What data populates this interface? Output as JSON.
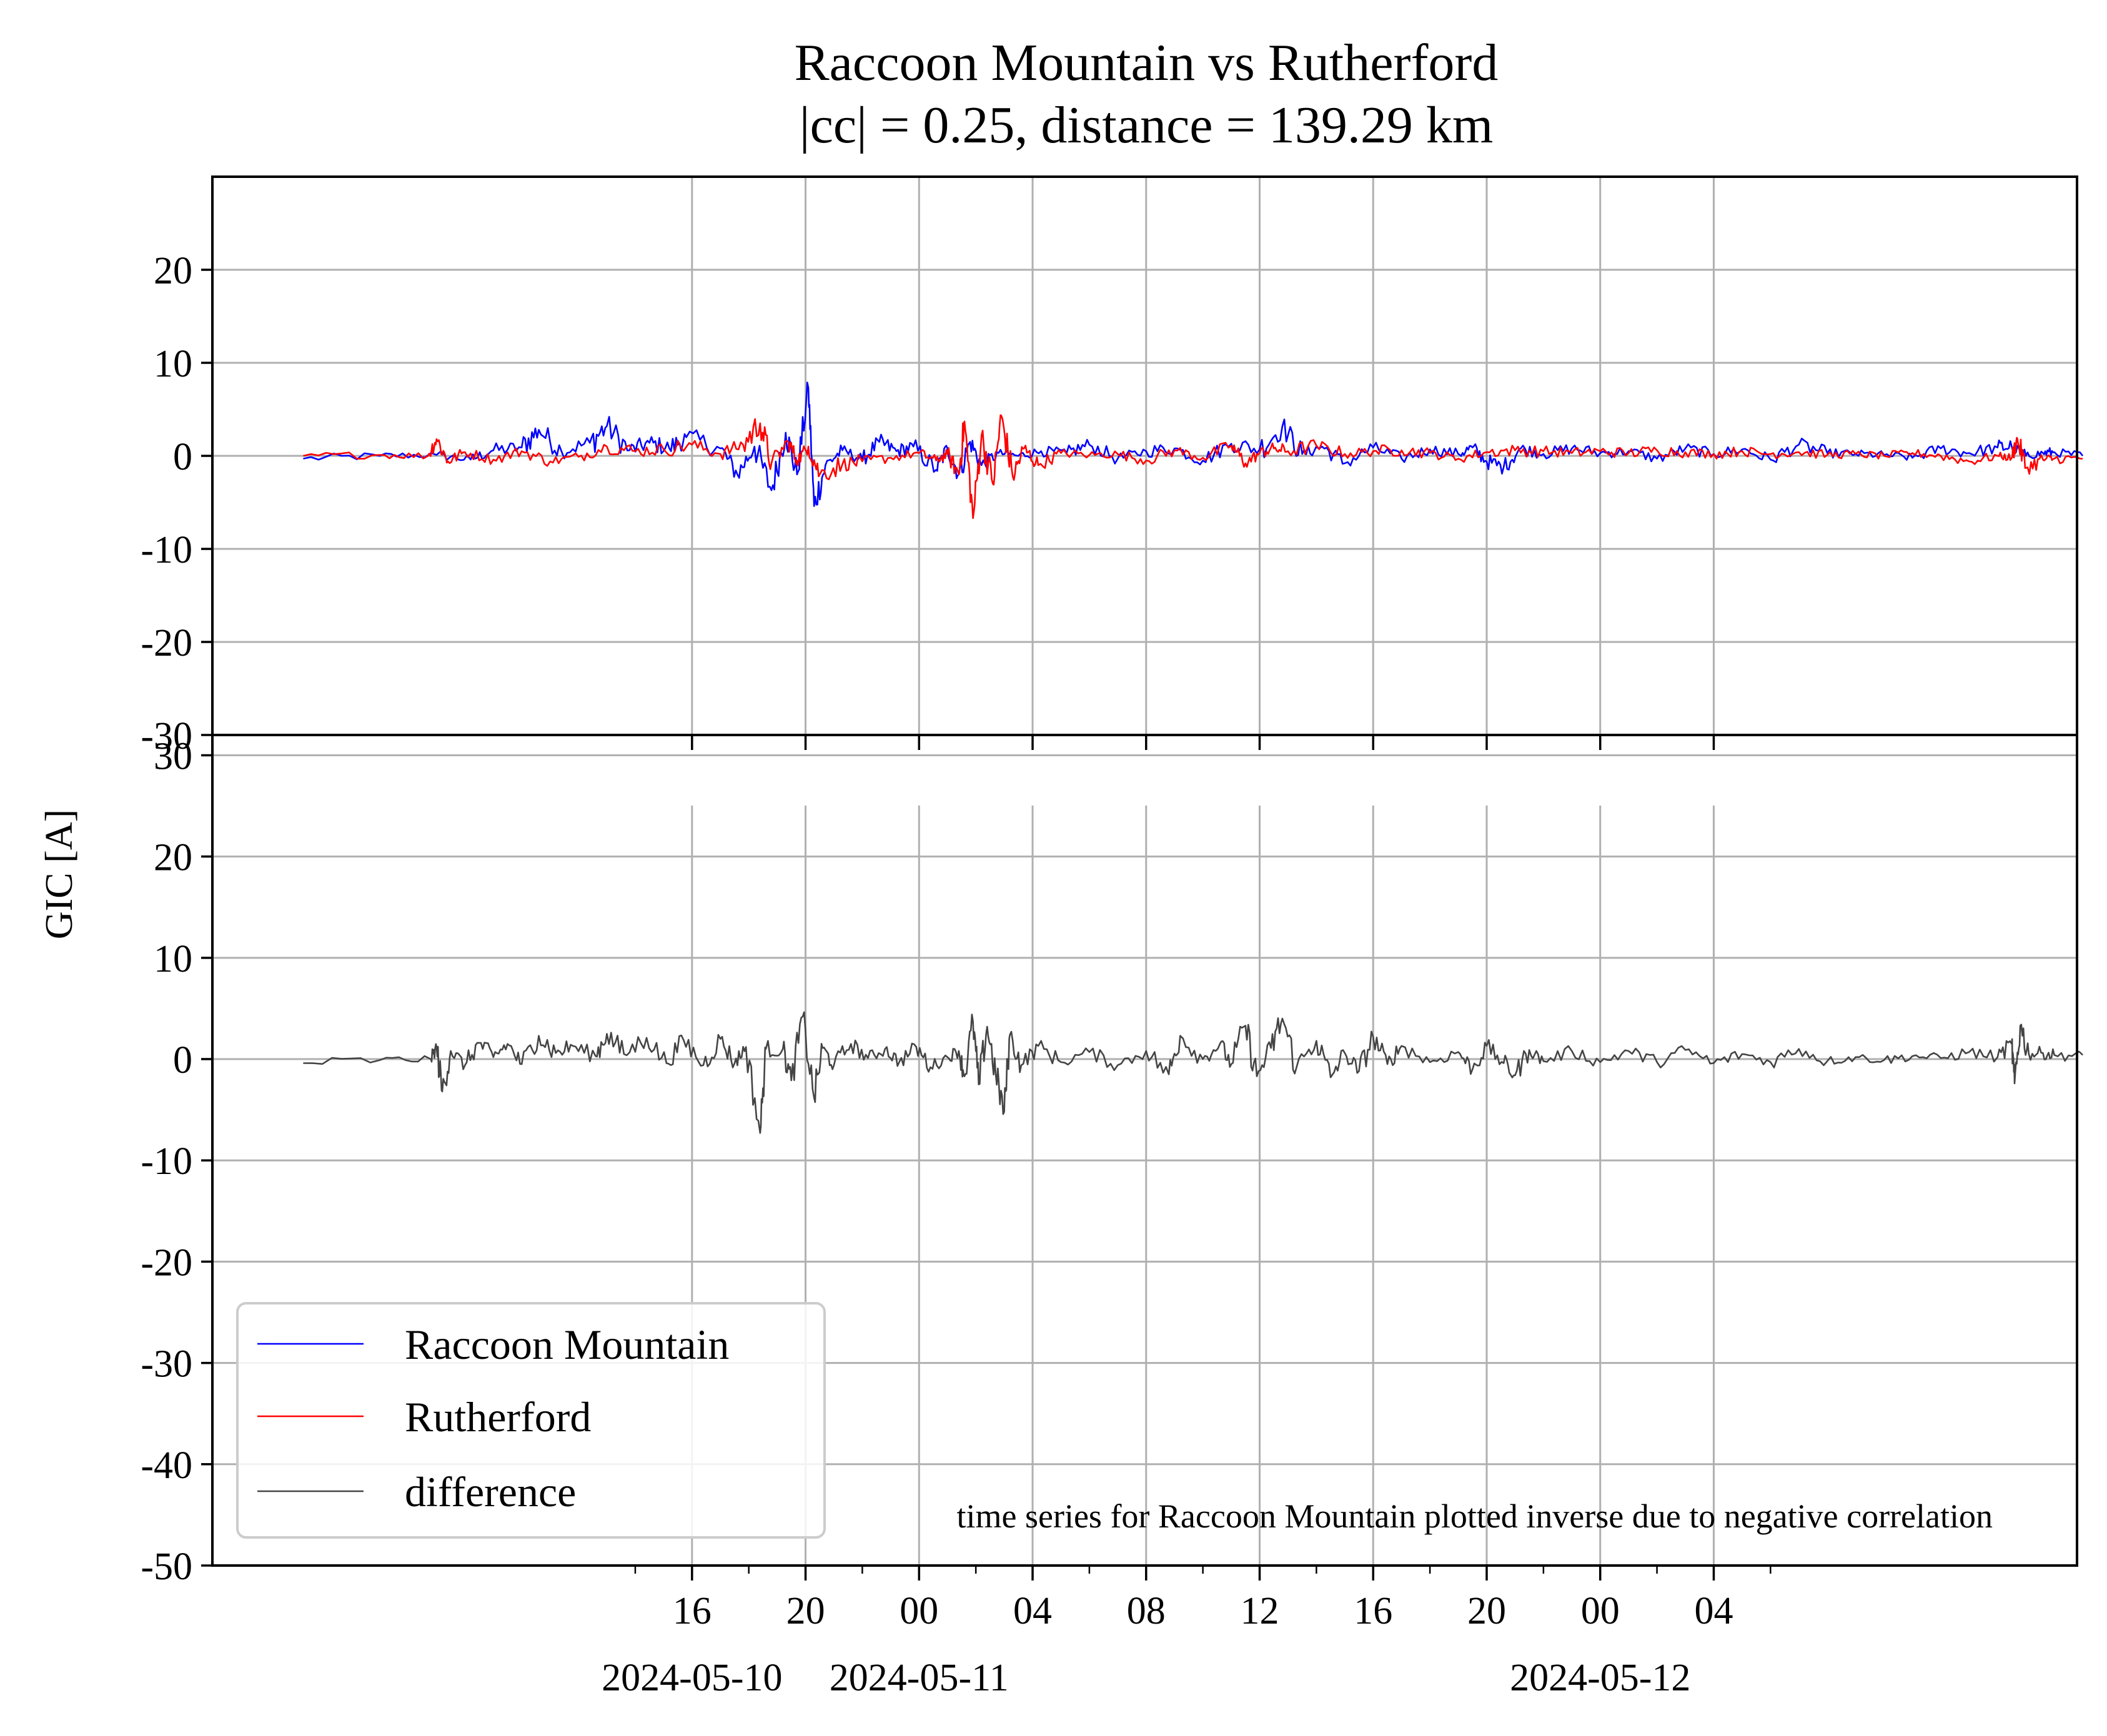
{
  "chart_data": [
    {
      "type": "line",
      "title": "Raccoon Mountain vs Rutherford",
      "subtitle": "|cc| = 0.25, distance = 139.29 km",
      "ylabel": "GIC [A]",
      "ylim": [
        -30,
        30
      ],
      "yticks": [
        -30,
        -20,
        -10,
        0,
        10,
        20
      ],
      "xlim": [
        -16.9,
        48.8
      ],
      "grid": true,
      "series": [
        {
          "name": "Raccoon Mountain",
          "color": "#0000ff",
          "keypoints": [
            [
              -13.7,
              -0.3
            ],
            [
              -11.0,
              0.0
            ],
            [
              -9.0,
              0.1
            ],
            [
              -7.8,
              -0.4
            ],
            [
              -7.0,
              0.6
            ],
            [
              -6.0,
              0.9
            ],
            [
              -5.4,
              2.8
            ],
            [
              -4.6,
              0.5
            ],
            [
              -3.6,
              1.4
            ],
            [
              -3.0,
              3.2
            ],
            [
              -2.2,
              0.6
            ],
            [
              -1.5,
              1.4
            ],
            [
              -0.8,
              0.8
            ],
            [
              -0.2,
              2.0
            ],
            [
              1.0,
              0.8
            ],
            [
              1.6,
              -2.0
            ],
            [
              2.2,
              1.0
            ],
            [
              2.8,
              -3.7
            ],
            [
              3.3,
              2.5
            ],
            [
              3.7,
              -2.0
            ],
            [
              4.1,
              7.3
            ],
            [
              4.3,
              -5.4
            ],
            [
              4.7,
              -1.0
            ],
            [
              5.3,
              0.6
            ],
            [
              6.0,
              -0.4
            ],
            [
              6.6,
              1.5
            ],
            [
              7.2,
              0.5
            ],
            [
              7.8,
              1.0
            ],
            [
              8.6,
              -1.5
            ],
            [
              9.0,
              0.8
            ],
            [
              9.4,
              -2.0
            ],
            [
              9.8,
              1.5
            ],
            [
              10.2,
              -1.0
            ],
            [
              10.8,
              0.3
            ],
            [
              11.5,
              0.0
            ],
            [
              12.3,
              0.5
            ],
            [
              13.2,
              0.3
            ],
            [
              14.0,
              1.2
            ],
            [
              15.0,
              -0.3
            ],
            [
              16.0,
              0.5
            ],
            [
              17.0,
              0.8
            ],
            [
              18.0,
              -0.5
            ],
            [
              19.0,
              1.3
            ],
            [
              20.0,
              0.7
            ],
            [
              20.8,
              3.2
            ],
            [
              21.5,
              0.2
            ],
            [
              22.2,
              1.0
            ],
            [
              23.0,
              -0.8
            ],
            [
              24.0,
              0.9
            ],
            [
              25.0,
              -0.3
            ],
            [
              26.0,
              0.7
            ],
            [
              27.0,
              0.2
            ],
            [
              27.5,
              0.9
            ],
            [
              28.0,
              -0.6
            ],
            [
              28.6,
              -1.2
            ],
            [
              29.2,
              0.8
            ],
            [
              30.0,
              0.2
            ],
            [
              31.0,
              0.8
            ],
            [
              32.0,
              0.3
            ],
            [
              33.0,
              0.5
            ],
            [
              34.0,
              -0.3
            ],
            [
              35.0,
              0.8
            ],
            [
              36.0,
              0.2
            ],
            [
              37.0,
              0.7
            ],
            [
              38.0,
              -0.4
            ],
            [
              39.0,
              1.2
            ],
            [
              40.0,
              0.3
            ],
            [
              41.0,
              0.2
            ],
            [
              42.0,
              0.1
            ],
            [
              43.0,
              -0.2
            ],
            [
              44.0,
              0.8
            ],
            [
              45.0,
              0.3
            ],
            [
              46.0,
              0.9
            ],
            [
              46.5,
              1.0
            ],
            [
              47.0,
              0.0
            ],
            [
              47.6,
              0.3
            ],
            [
              48.0,
              0.4
            ],
            [
              49.0,
              0.0
            ]
          ]
        },
        {
          "name": "Rutherford",
          "color": "#ff0000",
          "keypoints": [
            [
              -13.7,
              0.0
            ],
            [
              -11.0,
              0.1
            ],
            [
              -9.3,
              0.0
            ],
            [
              -9.0,
              1.8
            ],
            [
              -8.6,
              -0.6
            ],
            [
              -8.0,
              0.4
            ],
            [
              -7.0,
              -0.4
            ],
            [
              -6.0,
              0.5
            ],
            [
              -5.0,
              -0.6
            ],
            [
              -4.0,
              -0.1
            ],
            [
              -3.0,
              1.0
            ],
            [
              -2.0,
              0.5
            ],
            [
              -1.0,
              0.7
            ],
            [
              0.0,
              1.2
            ],
            [
              1.0,
              0.2
            ],
            [
              1.8,
              1.2
            ],
            [
              2.4,
              3.5
            ],
            [
              2.8,
              -0.8
            ],
            [
              3.4,
              1.5
            ],
            [
              3.7,
              -0.5
            ],
            [
              4.1,
              1.0
            ],
            [
              4.5,
              -2.0
            ],
            [
              5.3,
              -0.9
            ],
            [
              6.0,
              -0.6
            ],
            [
              7.0,
              -0.2
            ],
            [
              8.0,
              0.3
            ],
            [
              8.6,
              -0.5
            ],
            [
              9.0,
              0.2
            ],
            [
              9.4,
              -2.0
            ],
            [
              9.6,
              3.7
            ],
            [
              9.9,
              -6.7
            ],
            [
              10.2,
              2.2
            ],
            [
              10.6,
              -3.0
            ],
            [
              10.9,
              4.3
            ],
            [
              11.3,
              -2.2
            ],
            [
              11.7,
              0.8
            ],
            [
              12.2,
              -1.0
            ],
            [
              13.0,
              0.3
            ],
            [
              14.0,
              0.1
            ],
            [
              15.0,
              0.2
            ],
            [
              16.0,
              -0.5
            ],
            [
              17.0,
              0.6
            ],
            [
              18.0,
              -0.2
            ],
            [
              19.0,
              1.1
            ],
            [
              19.5,
              -0.8
            ],
            [
              20.0,
              0.3
            ],
            [
              20.5,
              0.8
            ],
            [
              21.0,
              0.5
            ],
            [
              22.0,
              1.1
            ],
            [
              23.0,
              0.2
            ],
            [
              24.0,
              0.5
            ],
            [
              25.0,
              0.6
            ],
            [
              26.0,
              0.3
            ],
            [
              27.0,
              -0.3
            ],
            [
              28.0,
              0.4
            ],
            [
              29.0,
              0.6
            ],
            [
              30.0,
              0.5
            ],
            [
              31.0,
              0.3
            ],
            [
              32.0,
              0.5
            ],
            [
              33.0,
              0.3
            ],
            [
              34.0,
              0.6
            ],
            [
              35.0,
              0.4
            ],
            [
              36.0,
              0.2
            ],
            [
              37.0,
              0.5
            ],
            [
              38.0,
              0.2
            ],
            [
              39.0,
              0.4
            ],
            [
              40.0,
              0.1
            ],
            [
              41.0,
              0.2
            ],
            [
              42.0,
              0.0
            ],
            [
              43.0,
              0.3
            ],
            [
              44.0,
              0.0
            ],
            [
              45.0,
              -0.6
            ],
            [
              46.0,
              0.0
            ],
            [
              46.5,
              -0.2
            ],
            [
              46.7,
              1.8
            ],
            [
              47.0,
              -1.3
            ],
            [
              47.6,
              -0.4
            ],
            [
              48.0,
              -0.3
            ],
            [
              49.0,
              -0.3
            ]
          ]
        }
      ]
    },
    {
      "type": "line",
      "ylim": [
        -50,
        32
      ],
      "yticks": [
        -50,
        -40,
        -30,
        -20,
        -10,
        0,
        10,
        20,
        30
      ],
      "xlim": [
        -16.9,
        48.8
      ],
      "xticks": [
        {
          "value": 0,
          "label": "16"
        },
        {
          "value": 4,
          "label": "20"
        },
        {
          "value": 8,
          "label": "00"
        },
        {
          "value": 12,
          "label": "04"
        },
        {
          "value": 16,
          "label": "08"
        },
        {
          "value": 20,
          "label": "12"
        },
        {
          "value": 24,
          "label": "16"
        },
        {
          "value": 28,
          "label": "20"
        },
        {
          "value": 32,
          "label": "00"
        },
        {
          "value": 36,
          "label": "04"
        }
      ],
      "date_labels": [
        {
          "value": 0,
          "label": "2024-05-10"
        },
        {
          "value": 8,
          "label": "2024-05-11"
        },
        {
          "value": 32,
          "label": "2024-05-12"
        }
      ],
      "grid": true,
      "annotation": "time series for Raccoon Mountain plotted inverse due to negative correlation",
      "series": [
        {
          "name": "difference",
          "color": "#444444",
          "keypoints": [
            [
              -13.7,
              -0.4
            ],
            [
              -11.0,
              -0.1
            ],
            [
              -9.2,
              0.0
            ],
            [
              -9.0,
              1.2
            ],
            [
              -8.8,
              -3.2
            ],
            [
              -8.5,
              0.8
            ],
            [
              -8.0,
              -0.6
            ],
            [
              -7.5,
              1.6
            ],
            [
              -7.0,
              0.2
            ],
            [
              -6.5,
              1.5
            ],
            [
              -6.0,
              -0.5
            ],
            [
              -5.4,
              2.3
            ],
            [
              -4.8,
              0.6
            ],
            [
              -4.2,
              1.3
            ],
            [
              -3.4,
              0.3
            ],
            [
              -3.0,
              2.5
            ],
            [
              -2.4,
              0.5
            ],
            [
              -1.6,
              2.1
            ],
            [
              -0.9,
              -0.4
            ],
            [
              -0.3,
              1.9
            ],
            [
              0.4,
              -0.6
            ],
            [
              1.0,
              2.0
            ],
            [
              1.5,
              -0.4
            ],
            [
              1.9,
              1.2
            ],
            [
              2.4,
              -7.3
            ],
            [
              2.6,
              1.0
            ],
            [
              3.2,
              1.0
            ],
            [
              3.5,
              -2.1
            ],
            [
              3.9,
              4.2
            ],
            [
              4.3,
              -3.8
            ],
            [
              4.6,
              1.1
            ],
            [
              5.0,
              -0.6
            ],
            [
              5.6,
              1.5
            ],
            [
              6.2,
              0.1
            ],
            [
              6.8,
              1.0
            ],
            [
              7.3,
              -0.3
            ],
            [
              7.9,
              1.2
            ],
            [
              8.4,
              -0.8
            ],
            [
              9.0,
              0.2
            ],
            [
              9.4,
              0.8
            ],
            [
              9.6,
              -1.7
            ],
            [
              9.9,
              3.7
            ],
            [
              10.1,
              -2.5
            ],
            [
              10.4,
              3.2
            ],
            [
              10.7,
              -1.5
            ],
            [
              11.0,
              -5.2
            ],
            [
              11.2,
              2.4
            ],
            [
              11.6,
              -0.6
            ],
            [
              12.2,
              1.3
            ],
            [
              13.0,
              -0.3
            ],
            [
              14.0,
              0.7
            ],
            [
              15.0,
              -0.6
            ],
            [
              16.0,
              0.8
            ],
            [
              16.8,
              -1.5
            ],
            [
              17.2,
              2.3
            ],
            [
              18.0,
              0.0
            ],
            [
              18.6,
              1.5
            ],
            [
              19.0,
              -0.5
            ],
            [
              19.5,
              3.3
            ],
            [
              19.9,
              -1.7
            ],
            [
              20.4,
              1.1
            ],
            [
              20.8,
              4.0
            ],
            [
              21.3,
              -0.8
            ],
            [
              22.0,
              1.8
            ],
            [
              22.5,
              -1.8
            ],
            [
              23.0,
              0.6
            ],
            [
              23.5,
              -1.2
            ],
            [
              24.0,
              2.2
            ],
            [
              24.5,
              -0.5
            ],
            [
              25.0,
              1.3
            ],
            [
              26.0,
              -0.3
            ],
            [
              27.0,
              0.7
            ],
            [
              27.5,
              -1.0
            ],
            [
              28.0,
              1.3
            ],
            [
              28.6,
              -0.4
            ],
            [
              29.0,
              -1.6
            ],
            [
              29.5,
              0.9
            ],
            [
              30.0,
              -0.2
            ],
            [
              31.0,
              0.8
            ],
            [
              32.0,
              -0.3
            ],
            [
              33.0,
              0.8
            ],
            [
              34.0,
              -0.3
            ],
            [
              35.0,
              0.9
            ],
            [
              36.0,
              -0.4
            ],
            [
              37.0,
              0.5
            ],
            [
              38.0,
              -0.3
            ],
            [
              39.0,
              1.0
            ],
            [
              40.0,
              -0.2
            ],
            [
              41.0,
              0.2
            ],
            [
              42.0,
              -0.1
            ],
            [
              43.0,
              0.3
            ],
            [
              44.0,
              0.1
            ],
            [
              45.0,
              0.7
            ],
            [
              46.0,
              0.2
            ],
            [
              46.5,
              1.5
            ],
            [
              46.6,
              -2.4
            ],
            [
              46.8,
              3.3
            ],
            [
              47.1,
              0.5
            ],
            [
              47.6,
              0.6
            ],
            [
              48.0,
              0.4
            ],
            [
              49.0,
              0.4
            ]
          ]
        }
      ]
    }
  ]
}
